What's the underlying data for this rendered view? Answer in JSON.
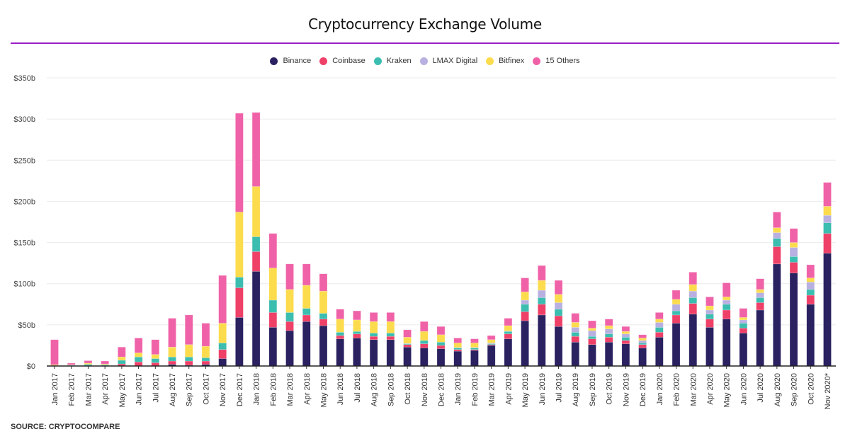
{
  "chart_data": {
    "type": "bar",
    "stacked": true,
    "title": "Cryptocurrency Exchange Volume",
    "xlabel": "",
    "ylabel": "",
    "ylim": [
      0,
      350
    ],
    "yticks": [
      0,
      50,
      100,
      150,
      200,
      250,
      300,
      350
    ],
    "ytick_labels": [
      "$0",
      "$50b",
      "$100b",
      "$150b",
      "$200b",
      "$250b",
      "$300b",
      "$350b"
    ],
    "grid": true,
    "legend_position": "top-center",
    "source": "SOURCE: CRYPTOCOMPARE",
    "categories": [
      "Jan 2017",
      "Feb 2017",
      "Mar 2017",
      "Apr 2017",
      "May 2017",
      "Jun 2017",
      "Jul 2017",
      "Aug 2017",
      "Sep 2017",
      "Oct 2017",
      "Nov 2017",
      "Dec 2017",
      "Jan 2018",
      "Feb 2018",
      "Mar 2018",
      "Apr 2018",
      "May 2018",
      "Jun 2018",
      "Jul 2018",
      "Aug 2018",
      "Sep 2018",
      "Oct 2018",
      "Nov 2018",
      "Dec 2018",
      "Jan 2019",
      "Feb 2019",
      "Mar 2019",
      "Apr 2019",
      "May 2019",
      "Jun 2019",
      "Jul 2019",
      "Aug 2019",
      "Sep 2019",
      "Oct 2019",
      "Nov 2019",
      "Dec 2019",
      "Jan 2020",
      "Feb 2020",
      "Mar 2020",
      "Apr 2020",
      "May 2020",
      "Jun 2020",
      "Jul 2020",
      "Aug 2020",
      "Sep 2020",
      "Oct 2020",
      "Nov 2020*"
    ],
    "series": [
      {
        "name": "Binance",
        "color": "#2a2160",
        "values": [
          0,
          0,
          0,
          0,
          0,
          0,
          0,
          2,
          1,
          2,
          9,
          59,
          115,
          47,
          43,
          54,
          49,
          33,
          34,
          32,
          32,
          23,
          22,
          21,
          18,
          19,
          25,
          33,
          55,
          62,
          48,
          29,
          26,
          29,
          27,
          22,
          35,
          52,
          63,
          47,
          57,
          40,
          68,
          124,
          113,
          75,
          137
        ]
      },
      {
        "name": "Coinbase",
        "color": "#ef4068",
        "values": [
          0,
          0.5,
          0.5,
          0.5,
          2.5,
          5,
          4,
          4,
          5,
          4,
          11,
          36,
          24,
          18,
          11,
          8,
          8,
          4,
          5,
          4,
          4,
          3,
          5,
          4,
          2,
          1,
          1,
          6,
          11,
          13,
          13,
          7,
          7,
          6,
          4,
          4,
          6,
          10,
          13,
          10,
          11,
          6,
          9,
          21,
          13,
          11,
          24
        ]
      },
      {
        "name": "Kraken",
        "color": "#3bbdb0",
        "values": [
          0,
          0.5,
          1.5,
          1,
          4.5,
          6,
          5,
          5,
          5,
          4,
          8,
          13,
          18,
          15,
          11,
          8,
          7,
          4,
          3,
          4,
          4,
          1,
          4,
          4,
          2,
          2,
          1,
          3,
          9,
          8,
          8,
          5,
          3,
          4,
          4,
          2,
          6,
          5,
          7,
          6,
          7,
          6,
          6,
          10,
          7,
          7,
          13
        ]
      },
      {
        "name": "LMAX Digital",
        "color": "#b8b0e0",
        "values": [
          0,
          0,
          0,
          0,
          0,
          0,
          0,
          0,
          0,
          0,
          0,
          0,
          0,
          0,
          0,
          0,
          0,
          0,
          0,
          0,
          0,
          0.5,
          0,
          0,
          0.5,
          0.5,
          1,
          0.5,
          5,
          9,
          8,
          6,
          7,
          6,
          4,
          3,
          6,
          8,
          8,
          5,
          5,
          4,
          6,
          7,
          11,
          9,
          9
        ]
      },
      {
        "name": "Bitfinex",
        "color": "#fcdc4d",
        "values": [
          1.5,
          0.5,
          1.5,
          1,
          4,
          5,
          5,
          12,
          15,
          14,
          24,
          79,
          61,
          39,
          28,
          28,
          27,
          16,
          14,
          14,
          14,
          7.5,
          11,
          9,
          5.5,
          5.5,
          4,
          6.5,
          10,
          12,
          10,
          6,
          3,
          4,
          3,
          3,
          4,
          6,
          8,
          5,
          4,
          3,
          4,
          6,
          6,
          5,
          11
        ]
      },
      {
        "name": "15 Others",
        "color": "#f062a8",
        "values": [
          30.5,
          2,
          3,
          3.5,
          12,
          18,
          18,
          35,
          36,
          28,
          58,
          120,
          90,
          42,
          31,
          26,
          21,
          12,
          11,
          11,
          11,
          9,
          12,
          10,
          6,
          5,
          5,
          9,
          17,
          18,
          17,
          11,
          9,
          8,
          6,
          4,
          8,
          11,
          15,
          11,
          17,
          11,
          13,
          19,
          17,
          16,
          29
        ]
      }
    ]
  }
}
